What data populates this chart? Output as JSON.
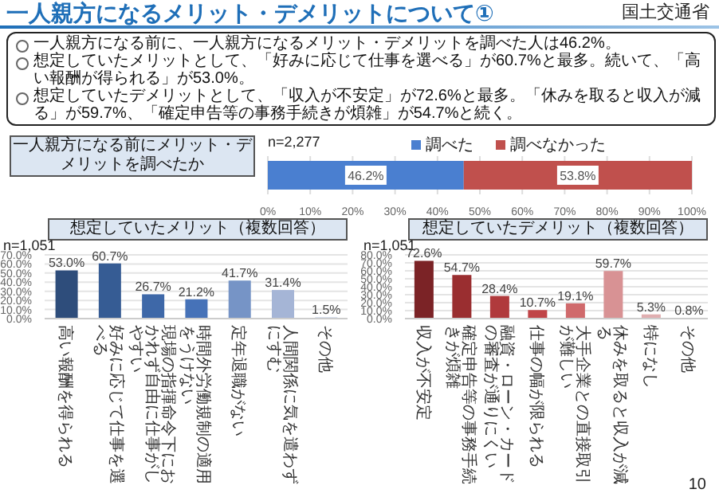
{
  "chart_data": [
    {
      "type": "bar",
      "orientation": "horizontal",
      "stacked": true,
      "title": "一人親方になる前にメリット・デメリットを調べたか",
      "subtitle": "n=2,277",
      "annotations": [
        "一人親方になるメリット・デメリットについて①",
        "国土交通省",
        "一人親方になる前に、一人親方になるメリット・デメリットを調べた人は46.2%。",
        "想定していたメリットとして、「好みに応じて仕事を選べる」が60.7%と最多。続いて、「高い報酬が得られる」が53.0%。",
        "想定していたデメリットとして、「収入が不安定」が72.6%と最多。「休みを取ると収入が減る」が59.7%、「確定申告等の事務手続きが煩雑」が54.7%と続く。",
        "10"
      ],
      "categories": [
        null
      ],
      "series": [
        {
          "name": "調べた",
          "color": "#4a7fd0",
          "values": [
            46.2
          ],
          "value_labels": [
            "46.2%"
          ]
        },
        {
          "name": "調べなかった",
          "color": "#c0504d",
          "values": [
            53.8
          ],
          "value_labels": [
            "53.8%"
          ]
        }
      ],
      "xlim": [
        0,
        100
      ],
      "xticks": [
        {
          "value": 0,
          "label": "0%"
        },
        {
          "value": 10,
          "label": "10%"
        },
        {
          "value": 20,
          "label": "20%"
        },
        {
          "value": 30,
          "label": "30%"
        },
        {
          "value": 40,
          "label": "40%"
        },
        {
          "value": 50,
          "label": "50%"
        },
        {
          "value": 60,
          "label": "60%"
        },
        {
          "value": 70,
          "label": "70%"
        },
        {
          "value": 80,
          "label": "80%"
        },
        {
          "value": 90,
          "label": "90%"
        },
        {
          "value": 100,
          "label": "100%"
        }
      ],
      "grid": "x",
      "legend": "top"
    },
    {
      "type": "bar",
      "title": "想定していたメリット（複数回答）",
      "subtitle": "n=1,051",
      "categories": [
        "高い報酬を得られる",
        "好みに応じて仕事を選べる",
        "現場の指揮命令下におかれず自由に仕事がしやすい",
        "時間外労働規制の適用をうけない",
        "定年退職がない",
        "人間関係に気を遣わずにすむ",
        "その他"
      ],
      "values": [
        53.0,
        60.7,
        26.7,
        21.2,
        41.7,
        31.4,
        1.5
      ],
      "colors": [
        "#2e4d7b",
        "#365c94",
        "#3e68a8",
        "#4672b8",
        "#7694c6",
        "#a5b5d6",
        "#c8d2e6"
      ],
      "value_labels": [
        "53.0%",
        "60.7%",
        "26.7%",
        "21.2%",
        "41.7%",
        "31.4%",
        "1.5%"
      ],
      "ylim": [
        0,
        70
      ],
      "yticks": [
        {
          "value": 0,
          "label": "0.0%"
        },
        {
          "value": 10,
          "label": "10.0%"
        },
        {
          "value": 20,
          "label": "20.0%"
        },
        {
          "value": 30,
          "label": "30.0%"
        },
        {
          "value": 40,
          "label": "40.0%"
        },
        {
          "value": 50,
          "label": "50.0%"
        },
        {
          "value": 60,
          "label": "60.0%"
        },
        {
          "value": 70,
          "label": "70.0%"
        }
      ],
      "grid": "y"
    },
    {
      "type": "bar",
      "title": "想定していたデメリット（複数回答）",
      "subtitle": "n=1,051",
      "categories": [
        "収入が不安定",
        "確定申告等の事務手続きが煩雑",
        "融資・ローン・カードの審査が通りにくい",
        "仕事の幅が限られる",
        "大手企業との直接取引が難しい",
        "休みを取ると収入が減る",
        "特になし",
        "その他"
      ],
      "values": [
        72.6,
        54.7,
        28.4,
        10.7,
        19.1,
        59.7,
        5.3,
        0.8
      ],
      "colors": [
        "#7b2326",
        "#9a2e30",
        "#b03a3c",
        "#c04447",
        "#d06a6c",
        "#d89294",
        "#e0aeb0",
        "#e8c8c8"
      ],
      "value_labels": [
        "72.6%",
        "54.7%",
        "28.4%",
        "10.7%",
        "19.1%",
        "59.7%",
        "5.3%",
        "0.8%"
      ],
      "ylim": [
        0,
        80
      ],
      "yticks": [
        {
          "value": 0,
          "label": "0.0%"
        },
        {
          "value": 10,
          "label": "10.0%"
        },
        {
          "value": 20,
          "label": "20.0%"
        },
        {
          "value": 30,
          "label": "30.0%"
        },
        {
          "value": 40,
          "label": "40.0%"
        },
        {
          "value": 50,
          "label": "50.0%"
        },
        {
          "value": 60,
          "label": "60.0%"
        },
        {
          "value": 70,
          "label": "70.0%"
        },
        {
          "value": 80,
          "label": "80.0%"
        }
      ],
      "grid": "y"
    }
  ]
}
